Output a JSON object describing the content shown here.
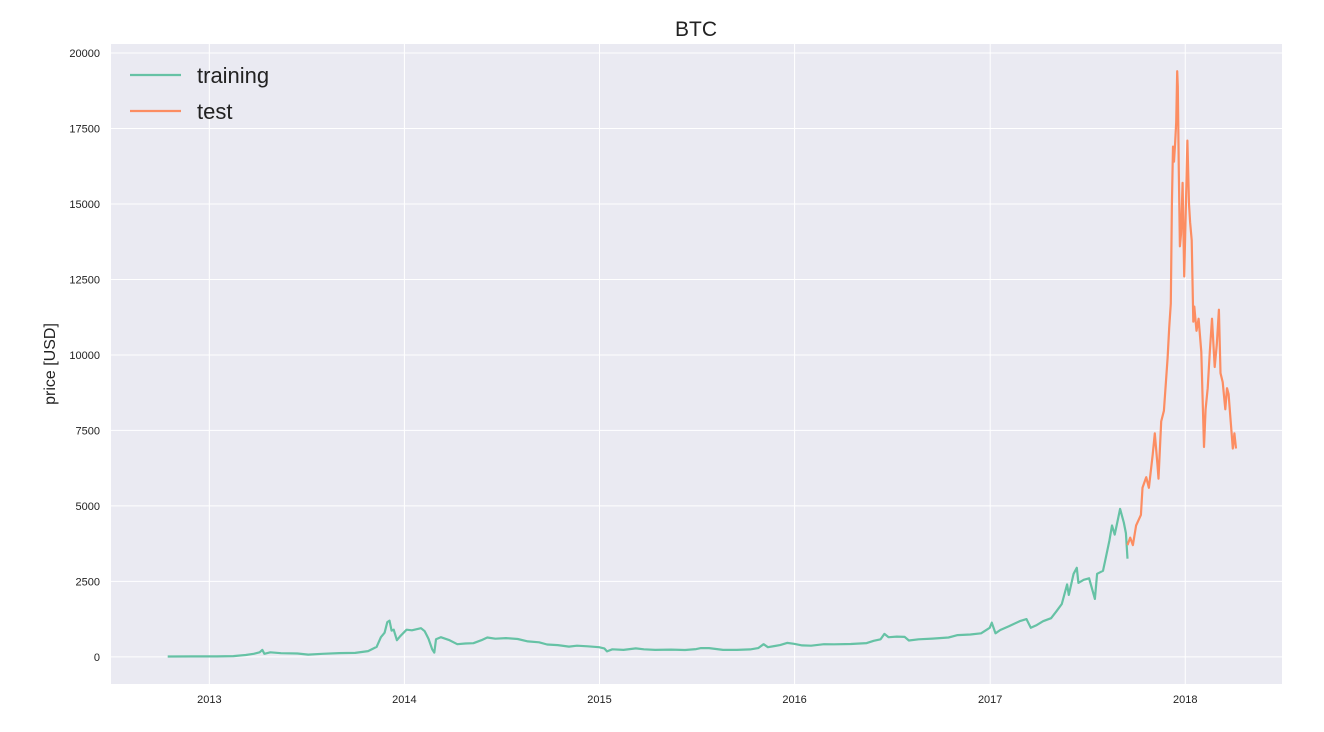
{
  "chart_data": {
    "type": "line",
    "title": "BTC",
    "xlabel": "",
    "ylabel": "price [USD]",
    "xlim": [
      "2012-07-01",
      "2018-07-01"
    ],
    "ylim": [
      -900,
      20300
    ],
    "xticks": [
      "2013",
      "2014",
      "2015",
      "2016",
      "2017",
      "2018"
    ],
    "yticks": [
      0,
      2500,
      5000,
      7500,
      10000,
      12500,
      15000,
      17500,
      20000
    ],
    "grid": true,
    "legend": "top-left",
    "series": [
      {
        "name": "training",
        "color": "#66c2a5",
        "points": [
          [
            "2012-10-15",
            12
          ],
          [
            "2012-12-01",
            13
          ],
          [
            "2013-01-15",
            15
          ],
          [
            "2013-02-15",
            25
          ],
          [
            "2013-03-10",
            60
          ],
          [
            "2013-03-25",
            100
          ],
          [
            "2013-04-05",
            150
          ],
          [
            "2013-04-10",
            230
          ],
          [
            "2013-04-14",
            100
          ],
          [
            "2013-04-25",
            150
          ],
          [
            "2013-05-15",
            120
          ],
          [
            "2013-06-15",
            110
          ],
          [
            "2013-07-05",
            75
          ],
          [
            "2013-08-01",
            100
          ],
          [
            "2013-09-01",
            125
          ],
          [
            "2013-10-01",
            130
          ],
          [
            "2013-10-25",
            190
          ],
          [
            "2013-11-10",
            330
          ],
          [
            "2013-11-18",
            650
          ],
          [
            "2013-11-25",
            800
          ],
          [
            "2013-11-30",
            1150
          ],
          [
            "2013-12-04",
            1200
          ],
          [
            "2013-12-08",
            870
          ],
          [
            "2013-12-12",
            900
          ],
          [
            "2013-12-18",
            550
          ],
          [
            "2013-12-24",
            680
          ],
          [
            "2014-01-05",
            900
          ],
          [
            "2014-01-15",
            880
          ],
          [
            "2014-02-01",
            950
          ],
          [
            "2014-02-08",
            850
          ],
          [
            "2014-02-15",
            600
          ],
          [
            "2014-02-22",
            250
          ],
          [
            "2014-02-26",
            140
          ],
          [
            "2014-03-01",
            580
          ],
          [
            "2014-03-10",
            650
          ],
          [
            "2014-03-25",
            560
          ],
          [
            "2014-04-10",
            420
          ],
          [
            "2014-04-25",
            440
          ],
          [
            "2014-05-10",
            450
          ],
          [
            "2014-05-25",
            550
          ],
          [
            "2014-06-05",
            640
          ],
          [
            "2014-06-20",
            600
          ],
          [
            "2014-07-10",
            620
          ],
          [
            "2014-08-01",
            590
          ],
          [
            "2014-08-20",
            510
          ],
          [
            "2014-09-10",
            480
          ],
          [
            "2014-09-25",
            410
          ],
          [
            "2014-10-15",
            390
          ],
          [
            "2014-11-05",
            340
          ],
          [
            "2014-11-20",
            370
          ],
          [
            "2014-12-10",
            350
          ],
          [
            "2014-12-31",
            320
          ],
          [
            "2015-01-10",
            280
          ],
          [
            "2015-01-15",
            180
          ],
          [
            "2015-01-25",
            250
          ],
          [
            "2015-02-15",
            230
          ],
          [
            "2015-03-10",
            280
          ],
          [
            "2015-03-25",
            250
          ],
          [
            "2015-04-15",
            230
          ],
          [
            "2015-05-15",
            240
          ],
          [
            "2015-06-10",
            225
          ],
          [
            "2015-07-01",
            255
          ],
          [
            "2015-07-10",
            290
          ],
          [
            "2015-07-25",
            290
          ],
          [
            "2015-08-20",
            230
          ],
          [
            "2015-09-15",
            230
          ],
          [
            "2015-10-10",
            245
          ],
          [
            "2015-10-25",
            290
          ],
          [
            "2015-11-04",
            420
          ],
          [
            "2015-11-12",
            320
          ],
          [
            "2015-11-25",
            360
          ],
          [
            "2015-12-05",
            390
          ],
          [
            "2015-12-18",
            460
          ],
          [
            "2015-12-31",
            430
          ],
          [
            "2016-01-15",
            380
          ],
          [
            "2016-02-01",
            370
          ],
          [
            "2016-02-25",
            420
          ],
          [
            "2016-03-15",
            415
          ],
          [
            "2016-04-15",
            425
          ],
          [
            "2016-05-15",
            455
          ],
          [
            "2016-05-28",
            530
          ],
          [
            "2016-06-10",
            580
          ],
          [
            "2016-06-17",
            760
          ],
          [
            "2016-06-25",
            650
          ],
          [
            "2016-07-10",
            670
          ],
          [
            "2016-07-25",
            660
          ],
          [
            "2016-08-02",
            540
          ],
          [
            "2016-08-20",
            580
          ],
          [
            "2016-09-15",
            605
          ],
          [
            "2016-10-15",
            640
          ],
          [
            "2016-11-01",
            720
          ],
          [
            "2016-11-25",
            740
          ],
          [
            "2016-12-15",
            780
          ],
          [
            "2016-12-31",
            960
          ],
          [
            "2017-01-04",
            1130
          ],
          [
            "2017-01-11",
            780
          ],
          [
            "2017-01-20",
            890
          ],
          [
            "2017-02-05",
            1010
          ],
          [
            "2017-02-25",
            1180
          ],
          [
            "2017-03-10",
            1250
          ],
          [
            "2017-03-18",
            960
          ],
          [
            "2017-03-28",
            1040
          ],
          [
            "2017-04-10",
            1180
          ],
          [
            "2017-04-25",
            1280
          ],
          [
            "2017-05-05",
            1510
          ],
          [
            "2017-05-15",
            1750
          ],
          [
            "2017-05-25",
            2400
          ],
          [
            "2017-05-28",
            2050
          ],
          [
            "2017-06-06",
            2750
          ],
          [
            "2017-06-12",
            2950
          ],
          [
            "2017-06-15",
            2450
          ],
          [
            "2017-06-25",
            2550
          ],
          [
            "2017-07-05",
            2600
          ],
          [
            "2017-07-16",
            1920
          ],
          [
            "2017-07-20",
            2750
          ],
          [
            "2017-07-31",
            2850
          ],
          [
            "2017-08-05",
            3250
          ],
          [
            "2017-08-12",
            3850
          ],
          [
            "2017-08-17",
            4350
          ],
          [
            "2017-08-22",
            4050
          ],
          [
            "2017-08-28",
            4550
          ],
          [
            "2017-09-01",
            4900
          ],
          [
            "2017-09-08",
            4450
          ],
          [
            "2017-09-12",
            4100
          ],
          [
            "2017-09-15",
            3250
          ]
        ]
      },
      {
        "name": "test",
        "color": "#fc8d62",
        "points": [
          [
            "2017-09-15",
            3700
          ],
          [
            "2017-09-20",
            3950
          ],
          [
            "2017-09-25",
            3700
          ],
          [
            "2017-10-01",
            4350
          ],
          [
            "2017-10-10",
            4700
          ],
          [
            "2017-10-13",
            5600
          ],
          [
            "2017-10-20",
            5950
          ],
          [
            "2017-10-25",
            5600
          ],
          [
            "2017-11-01",
            6700
          ],
          [
            "2017-11-05",
            7400
          ],
          [
            "2017-11-10",
            6350
          ],
          [
            "2017-11-12",
            5900
          ],
          [
            "2017-11-17",
            7800
          ],
          [
            "2017-11-22",
            8150
          ],
          [
            "2017-11-29",
            9900
          ],
          [
            "2017-12-02",
            10900
          ],
          [
            "2017-12-05",
            11700
          ],
          [
            "2017-12-07",
            15000
          ],
          [
            "2017-12-09",
            16900
          ],
          [
            "2017-12-11",
            16400
          ],
          [
            "2017-12-13",
            17000
          ],
          [
            "2017-12-15",
            17700
          ],
          [
            "2017-12-17",
            19400
          ],
          [
            "2017-12-18",
            18900
          ],
          [
            "2017-12-20",
            16100
          ],
          [
            "2017-12-22",
            13600
          ],
          [
            "2017-12-24",
            14000
          ],
          [
            "2017-12-27",
            15700
          ],
          [
            "2017-12-30",
            12600
          ],
          [
            "2018-01-02",
            14800
          ],
          [
            "2018-01-05",
            17100
          ],
          [
            "2018-01-08",
            15000
          ],
          [
            "2018-01-10",
            14400
          ],
          [
            "2018-01-13",
            13800
          ],
          [
            "2018-01-16",
            11100
          ],
          [
            "2018-01-18",
            11600
          ],
          [
            "2018-01-22",
            10800
          ],
          [
            "2018-01-26",
            11200
          ],
          [
            "2018-01-31",
            10100
          ],
          [
            "2018-02-02",
            8800
          ],
          [
            "2018-02-05",
            6950
          ],
          [
            "2018-02-08",
            8200
          ],
          [
            "2018-02-12",
            8900
          ],
          [
            "2018-02-16",
            10100
          ],
          [
            "2018-02-20",
            11200
          ],
          [
            "2018-02-25",
            9600
          ],
          [
            "2018-03-01",
            10350
          ],
          [
            "2018-03-05",
            11500
          ],
          [
            "2018-03-08",
            9400
          ],
          [
            "2018-03-12",
            9100
          ],
          [
            "2018-03-17",
            8200
          ],
          [
            "2018-03-20",
            8900
          ],
          [
            "2018-03-23",
            8700
          ],
          [
            "2018-03-27",
            7800
          ],
          [
            "2018-03-31",
            6900
          ],
          [
            "2018-04-03",
            7400
          ],
          [
            "2018-04-06",
            6900
          ]
        ]
      }
    ]
  }
}
